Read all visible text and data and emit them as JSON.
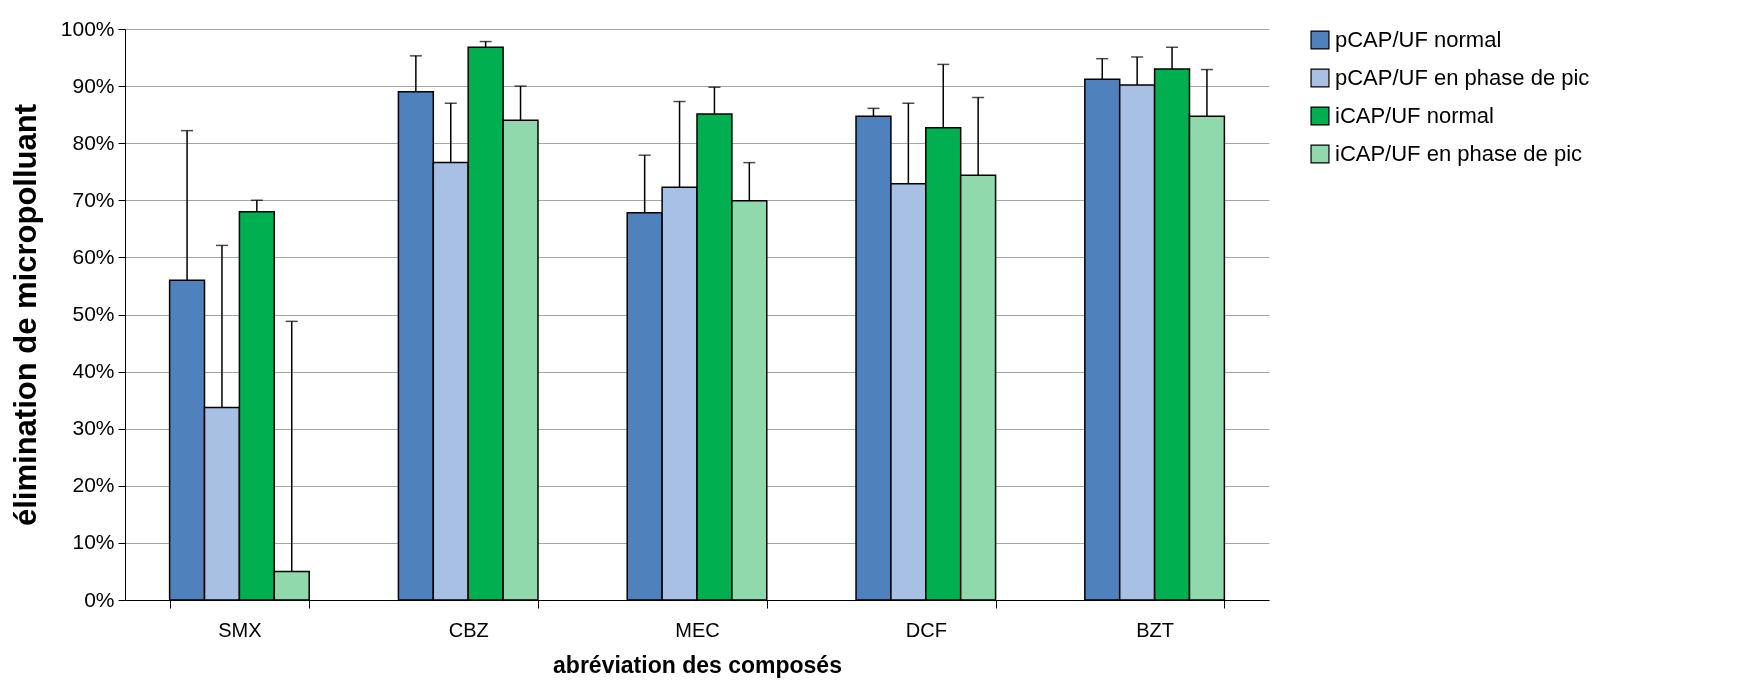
{
  "chart_data": {
    "type": "bar",
    "xlabel": "abréviation des composés",
    "ylabel": "élimination de micropolluant",
    "categories": [
      "SMX",
      "CBZ",
      "MEC",
      "DCF",
      "BZT"
    ],
    "series": [
      {
        "name": "pCAP/UF normal",
        "color": "#4f81bd",
        "values": [
          56,
          89,
          67.8,
          84.7,
          91.2
        ],
        "errors": [
          [
            56,
            82.2
          ],
          [
            89,
            95.3
          ],
          [
            67.8,
            77.9
          ],
          [
            84.7,
            86.1
          ],
          [
            91.2,
            94.8
          ]
        ]
      },
      {
        "name": "pCAP/UF en phase de pic",
        "color": "#a7c0e4",
        "values": [
          33.7,
          76.6,
          72.3,
          72.9,
          90.2
        ],
        "errors": [
          [
            33.7,
            62.1
          ],
          [
            76.6,
            87
          ],
          [
            72.3,
            87.3
          ],
          [
            72.9,
            87
          ],
          [
            90.2,
            95.1
          ]
        ]
      },
      {
        "name": "iCAP/UF normal",
        "color": "#00b050",
        "values": [
          68,
          96.8,
          85.1,
          82.7,
          93
        ],
        "errors": [
          [
            68,
            70
          ],
          [
            96.8,
            97.8
          ],
          [
            85.1,
            89.8
          ],
          [
            82.7,
            93.8
          ],
          [
            93,
            96.8
          ]
        ]
      },
      {
        "name": "iCAP/UF en phase de pic",
        "color": "#8fd9ad",
        "values": [
          5,
          84,
          69.9,
          74.4,
          84.7
        ],
        "errors": [
          [
            5,
            48.8
          ],
          [
            84,
            90
          ],
          [
            69.9,
            76.6
          ],
          [
            74.4,
            88
          ],
          [
            84.7,
            92.9
          ]
        ]
      }
    ],
    "ylim": [
      0,
      100
    ],
    "yticks": [
      {
        "value": 0,
        "label": "0%"
      },
      {
        "value": 10,
        "label": "10%"
      },
      {
        "value": 20,
        "label": "20%"
      },
      {
        "value": 30,
        "label": "30%"
      },
      {
        "value": 40,
        "label": "40%"
      },
      {
        "value": 50,
        "label": "50%"
      },
      {
        "value": 60,
        "label": "60%"
      },
      {
        "value": 70,
        "label": "70%"
      },
      {
        "value": 80,
        "label": "80%"
      },
      {
        "value": 90,
        "label": "90%"
      },
      {
        "value": 100,
        "label": "100%"
      }
    ],
    "grid": "y",
    "legend": "right"
  }
}
